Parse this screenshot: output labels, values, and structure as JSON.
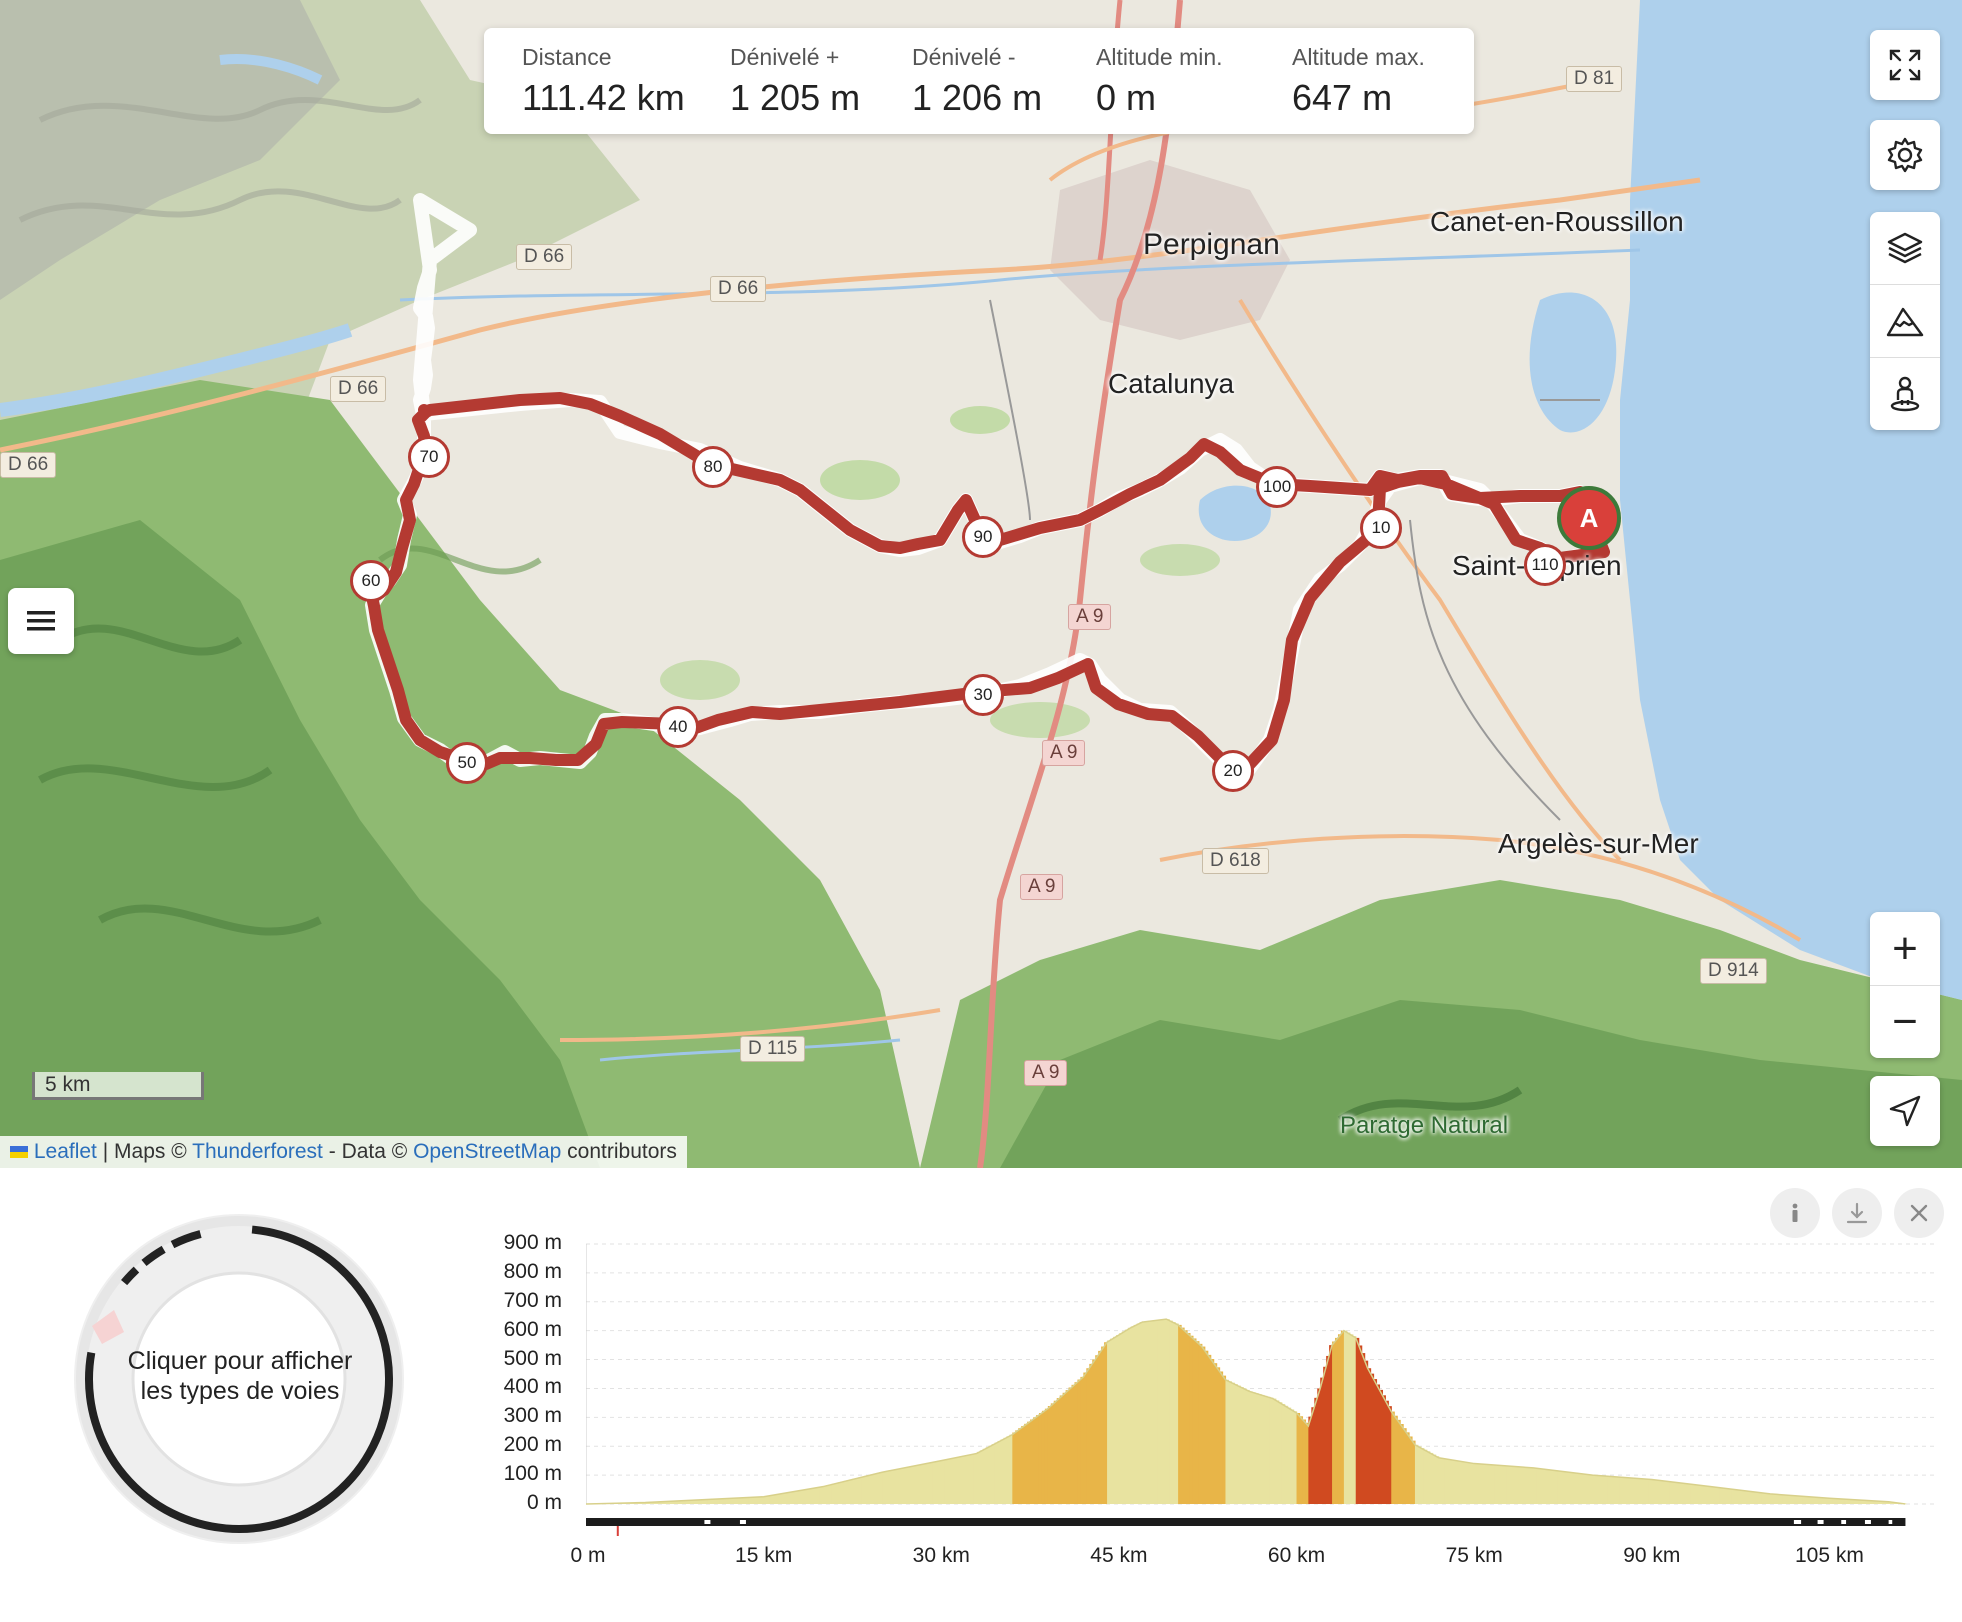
{
  "stats": [
    {
      "label": "Distance",
      "value": "111.42 km"
    },
    {
      "label": "Dénivelé +",
      "value": "1 205 m"
    },
    {
      "label": "Dénivelé -",
      "value": "1 206 m"
    },
    {
      "label": "Altitude min.",
      "value": "0 m"
    },
    {
      "label": "Altitude max.",
      "value": "647 m"
    }
  ],
  "map": {
    "places": [
      "Perpignan",
      "Canet-en-Roussillon",
      "Catalunya",
      "Saint-Cyprien",
      "Argelès-sur-Mer",
      "Paratge Natural"
    ],
    "roads": [
      "D 81",
      "D 66",
      "D 66",
      "D 66",
      "D 66",
      "A 9",
      "A 9",
      "A 9",
      "A 9",
      "D 618",
      "D 914",
      "D 115",
      "D 115"
    ],
    "km_markers": [
      "10",
      "20",
      "30",
      "40",
      "50",
      "60",
      "70",
      "80",
      "90",
      "100",
      "110"
    ],
    "start_label": "A",
    "route_color": "#b43a32",
    "scale_label": "5 km"
  },
  "attribution": {
    "leaflet": "Leaflet",
    "sep1": " | Maps © ",
    "thunderforest": "Thunderforest",
    "sep2": " - Data © ",
    "osm": "OpenStreetMap",
    "tail": " contributors"
  },
  "controls": {
    "top": [
      "fullscreen-icon",
      "gear-icon",
      "layers-icon",
      "mountain-icon",
      "person-icon"
    ],
    "zoom_in": "+",
    "zoom_out": "−",
    "locate": "navigation-arrow-icon",
    "menu": "hamburger-icon"
  },
  "panel": {
    "donut_text": "Cliquer pour afficher les types de voies",
    "buttons": [
      "info-icon",
      "download-icon",
      "close-icon"
    ]
  },
  "chart_data": {
    "type": "area",
    "title": "",
    "xlabel": "",
    "ylabel": "",
    "x_ticks": [
      "0 m",
      "15 km",
      "30 km",
      "45 km",
      "60 km",
      "75 km",
      "90 km",
      "105 km"
    ],
    "y_ticks": [
      "900 m",
      "800 m",
      "700 m",
      "600 m",
      "500 m",
      "400 m",
      "300 m",
      "200 m",
      "100 m",
      "0 m"
    ],
    "xlim": [
      0,
      114
    ],
    "ylim": [
      0,
      900
    ],
    "x_km": [
      0,
      5,
      10,
      15,
      20,
      25,
      30,
      33,
      36,
      39,
      42,
      44,
      46,
      47,
      49,
      50,
      52,
      54,
      56,
      58,
      60,
      61,
      62,
      63,
      64,
      65,
      66,
      68,
      70,
      72,
      75,
      80,
      85,
      90,
      95,
      100,
      105,
      110,
      111.42
    ],
    "elevation_m": [
      0,
      5,
      15,
      25,
      60,
      110,
      150,
      175,
      240,
      330,
      440,
      560,
      610,
      630,
      640,
      620,
      545,
      430,
      390,
      365,
      315,
      270,
      400,
      550,
      600,
      575,
      470,
      320,
      205,
      160,
      140,
      125,
      100,
      85,
      60,
      35,
      20,
      8,
      0
    ],
    "colors": {
      "low": "#e8e3a0",
      "mid": "#e8b548",
      "high": "#d04a20"
    }
  }
}
